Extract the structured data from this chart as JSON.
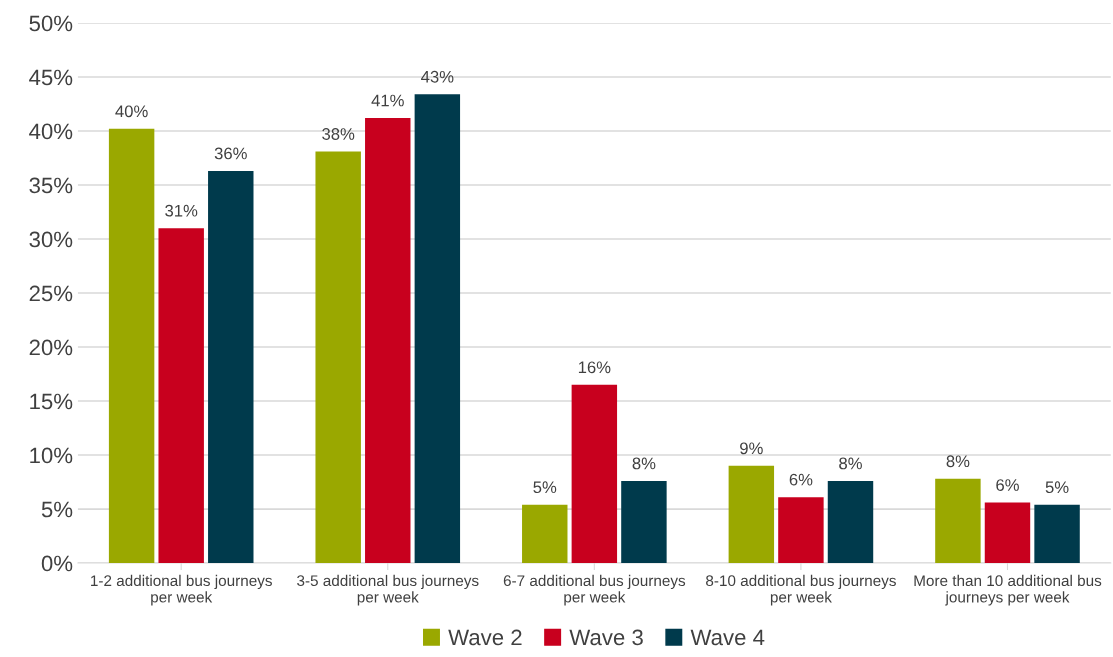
{
  "chart_data": {
    "type": "bar",
    "categories": [
      "1-2 additional bus journeys\nper week",
      "3-5 additional bus journeys\nper week",
      "6-7 additional bus journeys\nper week",
      "8-10 additional bus journeys\nper week",
      "More than 10 additional bus\njourneys per week"
    ],
    "series": [
      {
        "name": "Wave 2",
        "color": "#9aa800",
        "values": [
          40.2,
          38.1,
          5.4,
          9.0,
          7.8
        ],
        "value_labels": [
          "40%",
          "38%",
          "5%",
          "9%",
          "8%"
        ]
      },
      {
        "name": "Wave 3",
        "color": "#c8001e",
        "values": [
          31.0,
          41.2,
          16.5,
          6.1,
          5.6
        ],
        "value_labels": [
          "31%",
          "41%",
          "16%",
          "6%",
          "6%"
        ]
      },
      {
        "name": "Wave 4",
        "color": "#003a4c",
        "values": [
          36.3,
          43.4,
          7.6,
          7.6,
          5.4
        ],
        "value_labels": [
          "36%",
          "43%",
          "8%",
          "8%",
          "5%"
        ]
      }
    ],
    "ylim": [
      0,
      50
    ],
    "yticks": [
      {
        "value": 0,
        "label": "0%"
      },
      {
        "value": 5,
        "label": "5%"
      },
      {
        "value": 10,
        "label": "10%"
      },
      {
        "value": 15,
        "label": "15%"
      },
      {
        "value": 20,
        "label": "20%"
      },
      {
        "value": 25,
        "label": "25%"
      },
      {
        "value": 30,
        "label": "30%"
      },
      {
        "value": 35,
        "label": "35%"
      },
      {
        "value": 40,
        "label": "40%"
      },
      {
        "value": 45,
        "label": "45%"
      },
      {
        "value": 50,
        "label": "50%"
      }
    ],
    "grid": "y",
    "legend": "bottom"
  }
}
